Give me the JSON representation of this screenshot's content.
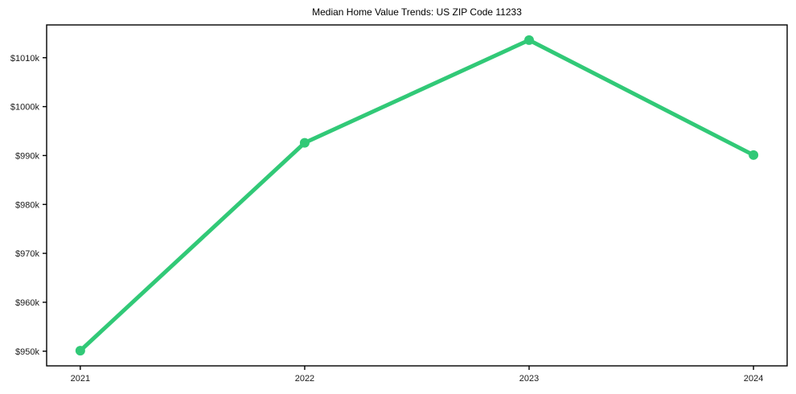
{
  "figure": {
    "background": "#ffffff"
  },
  "chart_data": {
    "type": "line",
    "title": "Median Home Value Trends: US ZIP Code 11233",
    "x": [
      2021,
      2022,
      2023,
      2024
    ],
    "x_tick_labels": [
      "2021",
      "2022",
      "2023",
      "2024"
    ],
    "series": [
      {
        "name": "median-home-value",
        "values": [
          950.1,
          992.6,
          1013.6,
          990.1
        ],
        "color": "#31c977"
      }
    ],
    "y_ticks": [
      950,
      960,
      970,
      980,
      990,
      1000,
      1010
    ],
    "y_tick_labels": [
      "$950k",
      "$960k",
      "$970k",
      "$980k",
      "$990k",
      "$1000k",
      "$1010k"
    ],
    "ylim": [
      947.0,
      1016.7
    ],
    "xlim": [
      2020.85,
      2024.15
    ],
    "grid": false,
    "legend_position": "none",
    "marker": "circle",
    "line_width": 5,
    "marker_radius": 6,
    "axis_color": "#000000",
    "text_color": "#1a1a1a"
  }
}
